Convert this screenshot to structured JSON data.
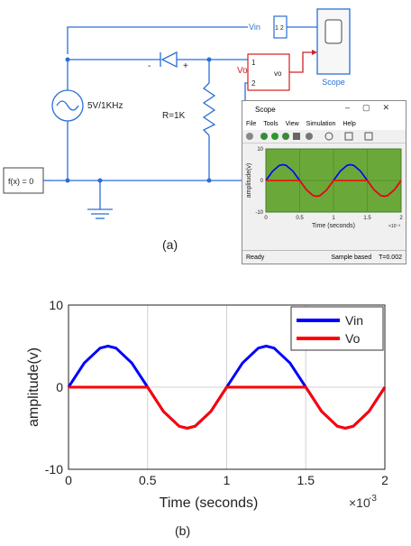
{
  "circuit": {
    "vin_label": "Vin",
    "vin_ports": "1 2",
    "scope_label": "Scope",
    "diode_minus": "-",
    "diode_plus": "+",
    "vo_block_in1": "1",
    "vo_block_in2": "2",
    "vo_block_name": "vo",
    "vo_label": "Vo",
    "source_label": "5V/1KHz",
    "resistor_label": "R=1K",
    "fx_label": "f(x) = 0",
    "caption_a": "(a)"
  },
  "scope_window": {
    "title": "Scope",
    "menu": [
      "File",
      "Tools",
      "View",
      "Simulation",
      "Help"
    ],
    "status_left": "Ready",
    "status_mid": "Sample based",
    "status_right": "T=0.002",
    "mini_ylabel": "amplitude(v)",
    "mini_xlabel": "Time (seconds)",
    "mini_exponent": "×10⁻³",
    "mini_yticks": [
      "10",
      "0",
      "-10"
    ],
    "mini_xticks": [
      "0",
      "0.5",
      "1",
      "1.5",
      "2"
    ],
    "plot_bg": "#6aa83a"
  },
  "colors": {
    "wire": "#2a6fd6",
    "vo_wire": "#d32020",
    "vin": "#0000ff",
    "vo": "#ff0000"
  },
  "caption_b": "(b)",
  "chart_data": {
    "type": "line",
    "xlabel": "Time (seconds)",
    "ylabel": "amplitude(v)",
    "x_exponent_label": "×10",
    "x_exponent": "-3",
    "xlim": [
      0,
      2
    ],
    "ylim": [
      -10,
      10
    ],
    "xticks": [
      "0",
      "0.5",
      "1",
      "1.5",
      "2"
    ],
    "yticks": [
      "10",
      "0",
      "-10"
    ],
    "grid": true,
    "legend_position": "top-right",
    "series": [
      {
        "name": "Vin",
        "color": "#0000ff",
        "x": [
          0,
          0.1,
          0.2,
          0.25,
          0.3,
          0.4,
          0.5,
          0.6,
          0.7,
          0.75,
          0.8,
          0.9,
          1.0,
          1.1,
          1.2,
          1.25,
          1.3,
          1.4,
          1.5,
          1.6,
          1.7,
          1.75,
          1.8,
          1.9,
          2.0
        ],
        "y": [
          0,
          2.94,
          4.76,
          5,
          4.76,
          2.94,
          0,
          -2.94,
          -4.76,
          -5,
          -4.76,
          -2.94,
          0,
          2.94,
          4.76,
          5,
          4.76,
          2.94,
          0,
          -2.94,
          -4.76,
          -5,
          -4.76,
          -2.94,
          0
        ]
      },
      {
        "name": "Vo",
        "color": "#ff0000",
        "x": [
          0,
          0.1,
          0.2,
          0.25,
          0.3,
          0.4,
          0.5,
          0.6,
          0.7,
          0.75,
          0.8,
          0.9,
          1.0,
          1.1,
          1.2,
          1.25,
          1.3,
          1.4,
          1.5,
          1.6,
          1.7,
          1.75,
          1.8,
          1.9,
          2.0
        ],
        "y": [
          0,
          0,
          0,
          0,
          0,
          0,
          0,
          -2.94,
          -4.76,
          -5,
          -4.76,
          -2.94,
          0,
          0,
          0,
          0,
          0,
          0,
          0,
          -2.94,
          -4.76,
          -5,
          -4.76,
          -2.94,
          0
        ]
      }
    ]
  }
}
